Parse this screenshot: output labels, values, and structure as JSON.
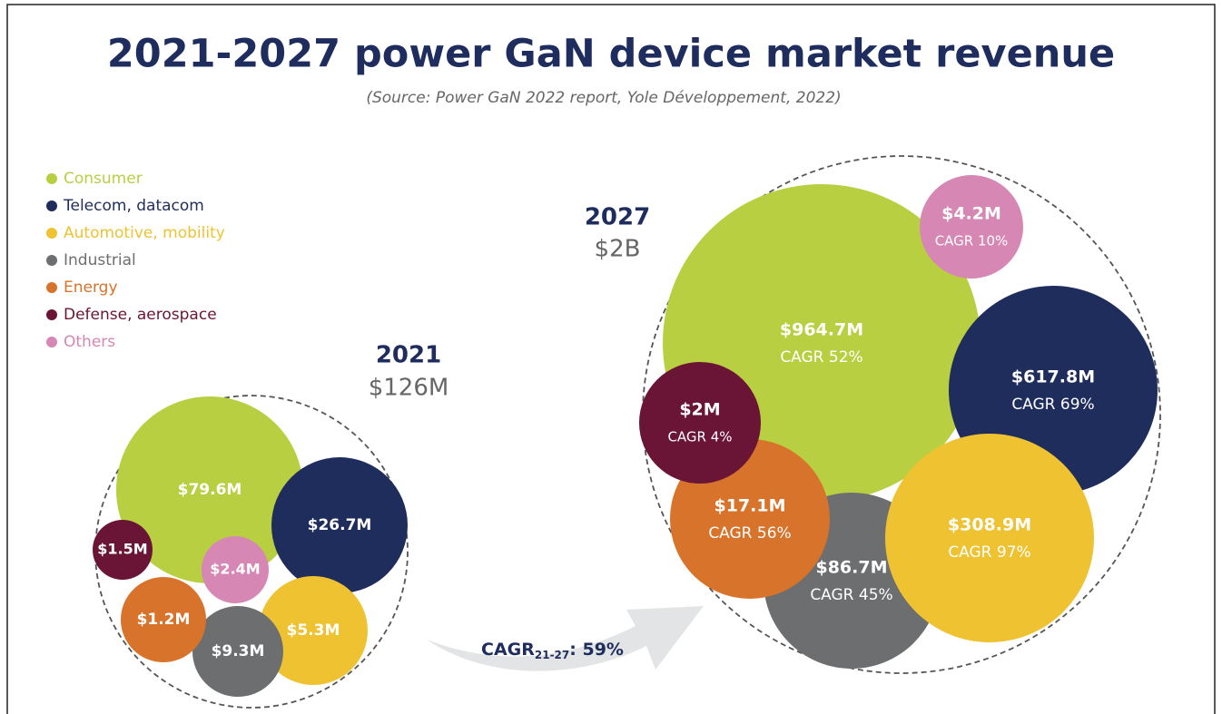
{
  "chart_data": {
    "type": "packed-bubble",
    "title": "2021-2027 power GaN device market revenue",
    "subtitle": "(Source: Power GaN 2022 report, Yole Développement, 2022)",
    "categories": [
      "Consumer",
      "Telecom, datacom",
      "Automotive, mobility",
      "Industrial",
      "Energy",
      "Defense, aerospace",
      "Others"
    ],
    "colors": [
      "#b9cf42",
      "#1f2d5c",
      "#efc232",
      "#6d6e70",
      "#d8732b",
      "#6a1535",
      "#d687b3"
    ],
    "series": [
      {
        "name": "2021",
        "total_label": "$126M",
        "values": [
          79.6,
          26.7,
          5.3,
          9.3,
          1.2,
          1.5,
          2.4
        ],
        "value_labels": [
          "$79.6M",
          "$26.7M",
          "$5.3M",
          "$9.3M",
          "$1.2M",
          "$1.5M",
          "$2.4M"
        ]
      },
      {
        "name": "2027",
        "total_label": "$2B",
        "values": [
          964.7,
          617.8,
          308.9,
          86.7,
          17.1,
          2,
          4.2
        ],
        "value_labels": [
          "$964.7M",
          "$617.8M",
          "$308.9M",
          "$86.7M",
          "$17.1M",
          "$2M",
          "$4.2M"
        ],
        "cagr_labels": [
          "CAGR 52%",
          "CAGR 69%",
          "CAGR 97%",
          "CAGR 45%",
          "CAGR 56%",
          "CAGR 4%",
          "CAGR 10%"
        ]
      }
    ],
    "annotation": {
      "text": "CAGR",
      "subscript": "21-27",
      "suffix": ": 59%"
    }
  }
}
